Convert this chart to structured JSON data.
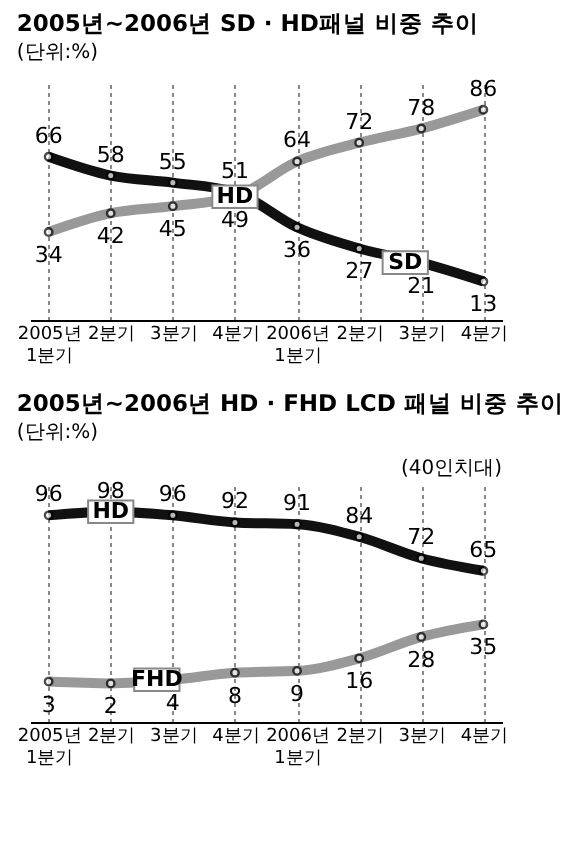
{
  "chart_data": [
    {
      "type": "line",
      "title": "2005년~2006년 SD · HD패널 비중 추이",
      "subtitle": "(단위:%)",
      "categories": [
        "2005년 1분기",
        "2분기",
        "3분기",
        "4분기",
        "2006년 1분기",
        "2분기",
        "3분기",
        "4분기"
      ],
      "series": [
        {
          "name": "HD",
          "color": "#999999",
          "values": [
            34,
            42,
            45,
            49,
            64,
            72,
            78,
            86
          ]
        },
        {
          "name": "SD",
          "color": "#111111",
          "values": [
            66,
            58,
            55,
            51,
            36,
            27,
            21,
            13
          ]
        }
      ],
      "data_labels": true,
      "grid": "x",
      "legend": false,
      "marker": "circle",
      "line_style": "solid",
      "tick_labels": "x"
    },
    {
      "type": "line",
      "title": "2005년~2006년 HD · FHD LCD 패널 비중 추이",
      "subtitle": "(단위:%)",
      "annotations": [
        "(40인치대)"
      ],
      "categories": [
        "2005년 1분기",
        "2분기",
        "3분기",
        "4분기",
        "2006년 1분기",
        "2분기",
        "3분기",
        "4분기"
      ],
      "series": [
        {
          "name": "HD",
          "color": "#111111",
          "values": [
            96,
            98,
            96,
            92,
            91,
            84,
            72,
            65
          ]
        },
        {
          "name": "FHD",
          "color": "#999999",
          "values": [
            3,
            2,
            4,
            8,
            9,
            16,
            28,
            35
          ]
        }
      ],
      "data_labels": true,
      "grid": "x",
      "legend": false,
      "marker": "circle",
      "line_style": "solid",
      "tick_labels": "x"
    }
  ]
}
